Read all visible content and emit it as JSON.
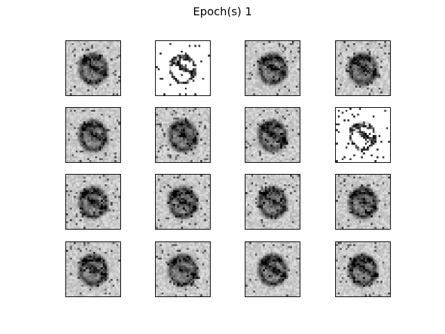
{
  "figure": {
    "title": "Epoch(s) 1"
  },
  "grid": {
    "rows": 4,
    "cols": 4,
    "image_resolution": 28,
    "colormap": "gray_r",
    "sparse_sample_indices": [
      1,
      7
    ]
  }
}
